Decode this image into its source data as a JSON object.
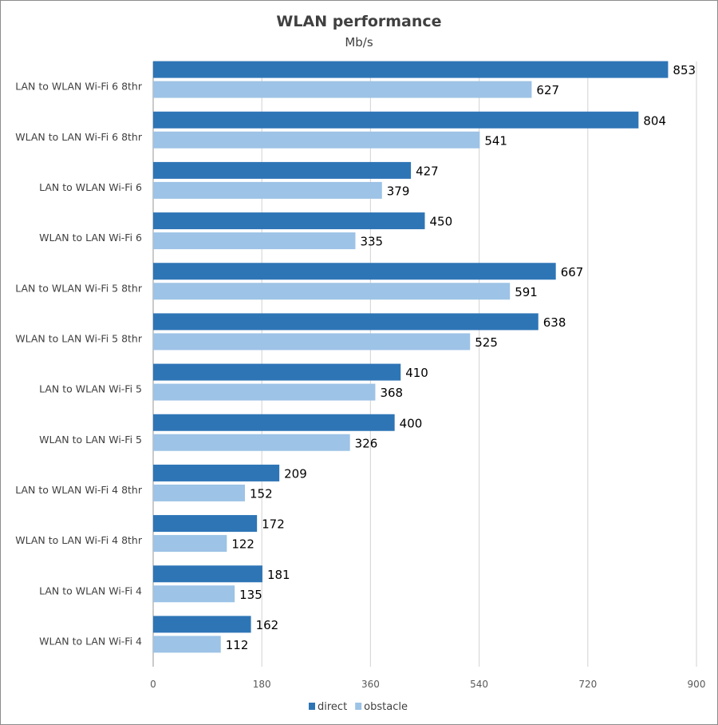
{
  "chart_data": {
    "type": "bar",
    "orientation": "horizontal",
    "title": "WLAN performance",
    "subtitle": "Mb/s",
    "categories": [
      "LAN to WLAN Wi-Fi 6 8thr",
      "WLAN to LAN Wi-Fi 6 8thr",
      "LAN to WLAN Wi-Fi 6",
      "WLAN to LAN Wi-Fi 6",
      "LAN to WLAN Wi-Fi 5 8thr",
      "WLAN to LAN Wi-Fi 5 8thr",
      "LAN to WLAN Wi-Fi 5",
      "WLAN to LAN Wi-Fi 5",
      "LAN to WLAN Wi-Fi 4 8thr",
      "WLAN to LAN Wi-Fi 4 8thr",
      "LAN to WLAN Wi-Fi 4",
      "WLAN to LAN Wi-Fi 4"
    ],
    "series": [
      {
        "name": "direct",
        "color": "#2e75b6",
        "values": [
          853,
          804,
          427,
          450,
          667,
          638,
          410,
          400,
          209,
          172,
          181,
          162
        ]
      },
      {
        "name": "obstacle",
        "color": "#9dc3e6",
        "values": [
          627,
          541,
          379,
          335,
          591,
          525,
          368,
          326,
          152,
          122,
          135,
          112
        ]
      }
    ],
    "xlim": [
      0,
      900
    ],
    "xticks": [
      "0",
      "180",
      "360",
      "540",
      "720",
      "900"
    ],
    "grid": true,
    "legend": "bottom",
    "data_labels": true
  }
}
